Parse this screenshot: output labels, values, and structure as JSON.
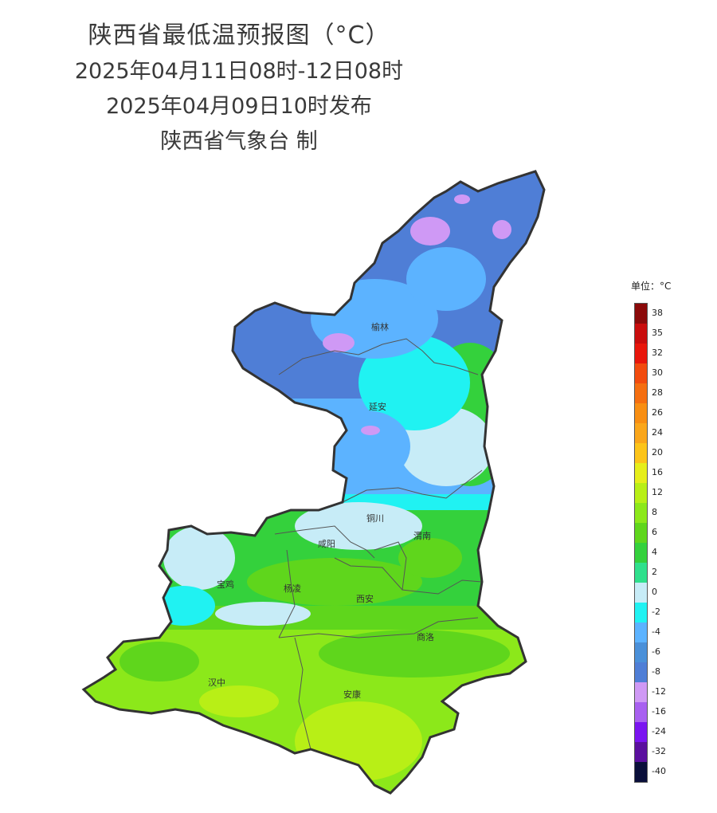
{
  "title": {
    "line1": "陕西省最低温预报图（°C）",
    "line2": "2025年04月11日08时-12日08时",
    "line3": "2025年04月09日10时发布",
    "line4": "陕西省气象台 制"
  },
  "cities": [
    "榆林",
    "延安",
    "铜川",
    "咸阳",
    "渭南",
    "宝鸡",
    "杨凌",
    "西安",
    "商洛",
    "汉中",
    "安康"
  ],
  "legend": {
    "unit": "单位：°C",
    "levels": [
      {
        "label": "38",
        "color": "#8b0a0a"
      },
      {
        "label": "35",
        "color": "#c90d0d"
      },
      {
        "label": "32",
        "color": "#e8160b"
      },
      {
        "label": "30",
        "color": "#f24b0e"
      },
      {
        "label": "28",
        "color": "#f56e10"
      },
      {
        "label": "26",
        "color": "#f88e12"
      },
      {
        "label": "24",
        "color": "#faa61a"
      },
      {
        "label": "20",
        "color": "#fcc419"
      },
      {
        "label": "16",
        "color": "#e6ee1a"
      },
      {
        "label": "12",
        "color": "#b8ef16"
      },
      {
        "label": "8",
        "color": "#8ce81a"
      },
      {
        "label": "6",
        "color": "#5fd61c"
      },
      {
        "label": "4",
        "color": "#34d13c"
      },
      {
        "label": "2",
        "color": "#2fe08c"
      },
      {
        "label": "0",
        "color": "#c7ecf7"
      },
      {
        "label": "-2",
        "color": "#20f2f2"
      },
      {
        "label": "-4",
        "color": "#5cb3ff"
      },
      {
        "label": "-6",
        "color": "#4a90d9"
      },
      {
        "label": "-8",
        "color": "#4f7ed6"
      },
      {
        "label": "-12",
        "color": "#cf99f5"
      },
      {
        "label": "-16",
        "color": "#a860f0"
      },
      {
        "label": "-24",
        "color": "#7a14f0"
      },
      {
        "label": "-32",
        "color": "#5a0f9e"
      },
      {
        "label": "-40",
        "color": "#0a0f3a"
      }
    ]
  }
}
